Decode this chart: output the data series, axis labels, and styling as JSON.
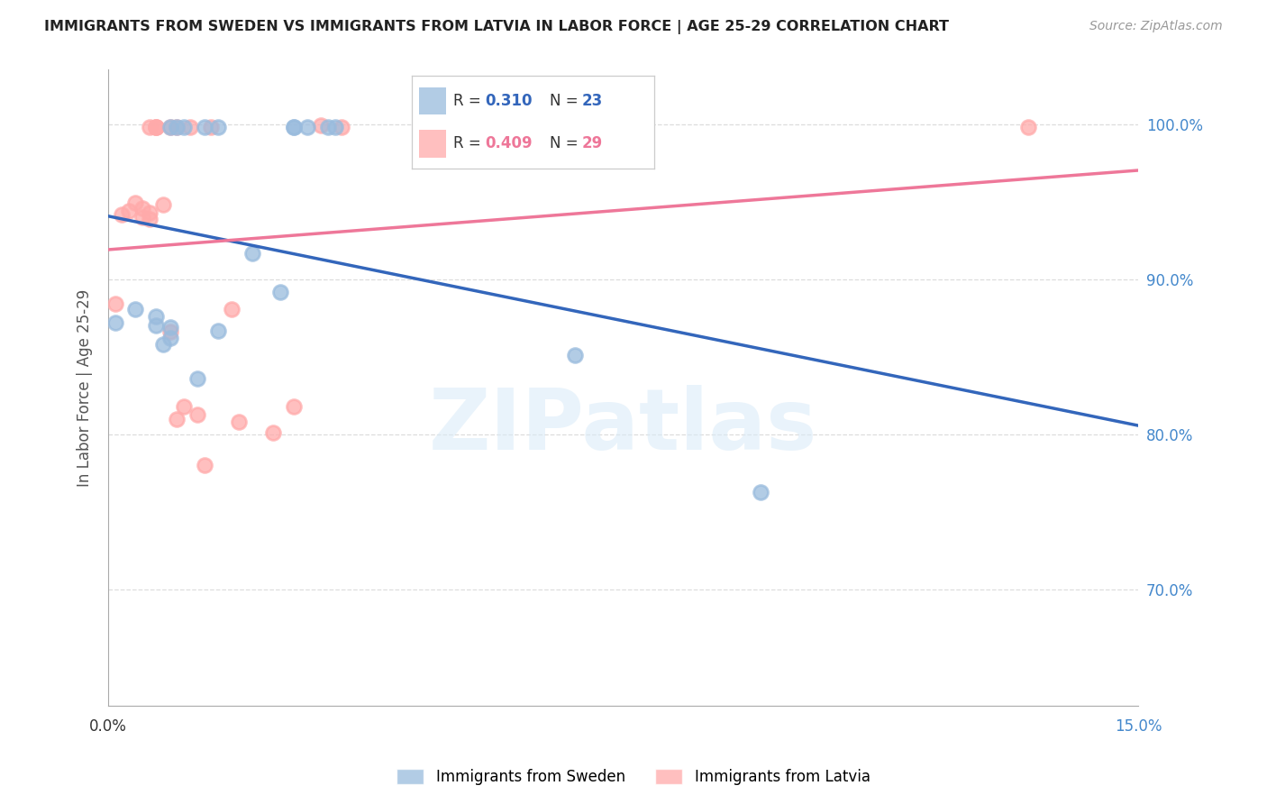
{
  "title": "IMMIGRANTS FROM SWEDEN VS IMMIGRANTS FROM LATVIA IN LABOR FORCE | AGE 25-29 CORRELATION CHART",
  "source": "Source: ZipAtlas.com",
  "ylabel": "In Labor Force | Age 25-29",
  "xlim": [
    0.0,
    0.15
  ],
  "ylim": [
    0.625,
    1.035
  ],
  "y_ticks": [
    0.7,
    0.8,
    0.9,
    1.0
  ],
  "y_tick_labels": [
    "70.0%",
    "80.0%",
    "90.0%",
    "100.0%"
  ],
  "sweden_R": 0.31,
  "sweden_N": 23,
  "latvia_R": 0.409,
  "latvia_N": 29,
  "sweden_color": "#99BBDD",
  "latvia_color": "#FFAAAA",
  "sweden_line_color": "#3366BB",
  "latvia_line_color": "#EE7799",
  "legend_sweden": "Immigrants from Sweden",
  "legend_latvia": "Immigrants from Latvia",
  "sweden_x": [
    0.001,
    0.004,
    0.007,
    0.007,
    0.008,
    0.009,
    0.009,
    0.009,
    0.01,
    0.011,
    0.013,
    0.014,
    0.016,
    0.016,
    0.021,
    0.025,
    0.027,
    0.027,
    0.029,
    0.032,
    0.033,
    0.068,
    0.095
  ],
  "sweden_y": [
    0.872,
    0.881,
    0.87,
    0.876,
    0.858,
    0.869,
    0.862,
    0.998,
    0.998,
    0.998,
    0.836,
    0.998,
    0.998,
    0.867,
    0.917,
    0.892,
    0.998,
    0.998,
    0.998,
    0.998,
    0.998,
    0.851,
    0.763
  ],
  "latvia_x": [
    0.001,
    0.002,
    0.003,
    0.004,
    0.005,
    0.005,
    0.006,
    0.006,
    0.006,
    0.007,
    0.007,
    0.007,
    0.008,
    0.009,
    0.009,
    0.01,
    0.01,
    0.011,
    0.012,
    0.013,
    0.014,
    0.015,
    0.018,
    0.019,
    0.024,
    0.027,
    0.031,
    0.034,
    0.134
  ],
  "latvia_y": [
    0.884,
    0.942,
    0.944,
    0.949,
    0.946,
    0.94,
    0.943,
    0.939,
    0.998,
    0.998,
    0.998,
    0.998,
    0.948,
    0.866,
    0.998,
    0.998,
    0.81,
    0.818,
    0.998,
    0.813,
    0.78,
    0.998,
    0.881,
    0.808,
    0.801,
    0.818,
    0.999,
    0.998,
    0.998
  ],
  "watermark": "ZIPatlas",
  "background_color": "#FFFFFF",
  "grid_color": "#DDDDDD",
  "title_color": "#222222",
  "source_color": "#999999",
  "axis_label_color": "#555555",
  "ytick_color": "#4488CC"
}
